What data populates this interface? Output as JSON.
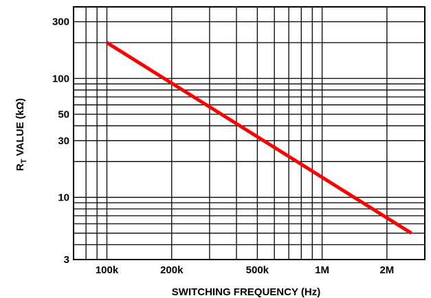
{
  "chart_data": {
    "type": "line",
    "xlabel": "SWITCHING FREQUENCY (Hz)",
    "ylabel": "R",
    "ylabel_sub": "T",
    "ylabel_suffix": " VALUE (kΩ)",
    "x_scale": "log",
    "y_scale": "log",
    "xlim": [
      70000,
      3000000
    ],
    "ylim": [
      3,
      400
    ],
    "grid": true,
    "x_ticks": [
      {
        "value": 100000,
        "label": "100k"
      },
      {
        "value": 200000,
        "label": "200k"
      },
      {
        "value": 500000,
        "label": "500k"
      },
      {
        "value": 1000000,
        "label": "1M"
      },
      {
        "value": 2000000,
        "label": "2M"
      }
    ],
    "y_ticks": [
      {
        "value": 3,
        "label": "3"
      },
      {
        "value": 10,
        "label": "10"
      },
      {
        "value": 30,
        "label": "30"
      },
      {
        "value": 50,
        "label": "50"
      },
      {
        "value": 100,
        "label": "100"
      },
      {
        "value": 300,
        "label": "300"
      }
    ],
    "series": [
      {
        "color": "#ff0000",
        "points": [
          {
            "x": 100000,
            "y": 200
          },
          {
            "x": 2600000,
            "y": 5
          }
        ]
      }
    ]
  }
}
